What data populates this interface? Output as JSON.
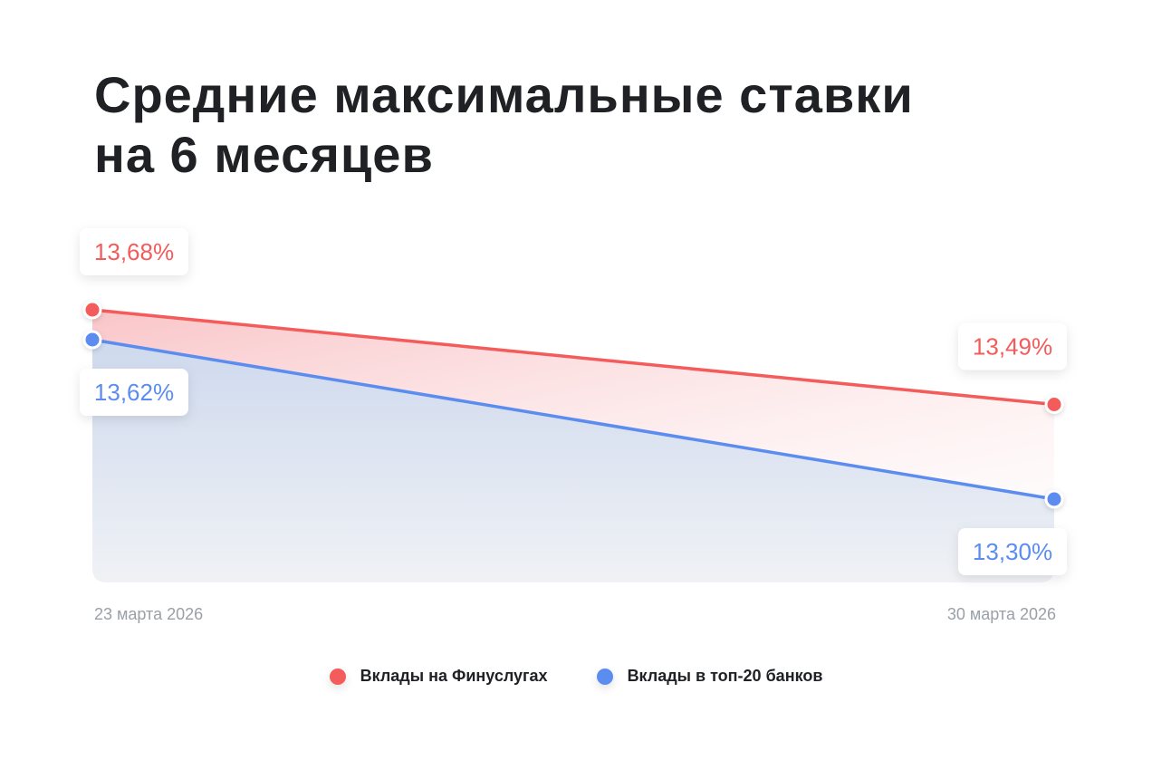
{
  "chart_data": {
    "type": "line",
    "title_lines": [
      "Средние максимальные ставки",
      "на 6 месяцев"
    ],
    "x": [
      "23 марта 2026",
      "30 марта 2026"
    ],
    "series": [
      {
        "name": "Вклады на Финуслугах",
        "values": [
          13.68,
          13.49
        ],
        "labels": [
          "13,68%",
          "13,49%"
        ],
        "color": "#f45b5b"
      },
      {
        "name": "Вклады в топ-20 банков",
        "values": [
          13.62,
          13.3
        ],
        "labels": [
          "13,62%",
          "13,30%"
        ],
        "color": "#5b8cf0"
      }
    ],
    "ylim": [
      13.1,
      13.74
    ],
    "grid": false,
    "legend_position": "bottom-center"
  }
}
